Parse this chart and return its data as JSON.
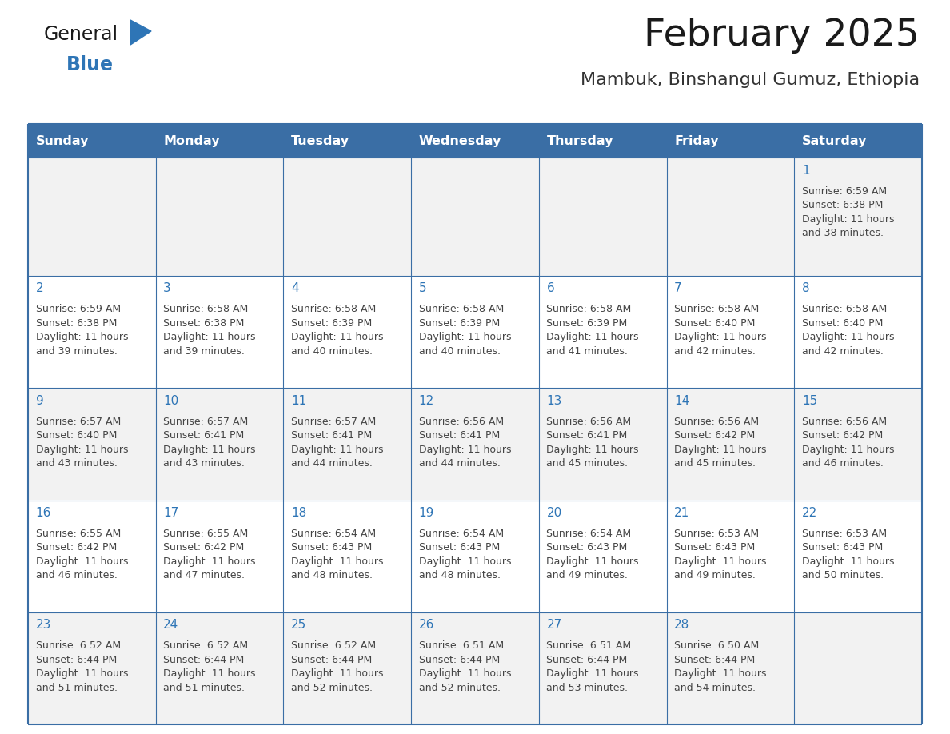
{
  "title": "February 2025",
  "subtitle": "Mambuk, Binshangul Gumuz, Ethiopia",
  "header_bg_color": "#3A6EA5",
  "header_text_color": "#FFFFFF",
  "row_colors": [
    "#F2F2F2",
    "#FFFFFF",
    "#F2F2F2",
    "#FFFFFF",
    "#F2F2F2"
  ],
  "day_headers": [
    "Sunday",
    "Monday",
    "Tuesday",
    "Wednesday",
    "Thursday",
    "Friday",
    "Saturday"
  ],
  "days": [
    {
      "day": 1,
      "col": 6,
      "row": 0,
      "sunrise": "6:59 AM",
      "sunset": "6:38 PM",
      "daylight": "11 hours and 38 minutes."
    },
    {
      "day": 2,
      "col": 0,
      "row": 1,
      "sunrise": "6:59 AM",
      "sunset": "6:38 PM",
      "daylight": "11 hours and 39 minutes."
    },
    {
      "day": 3,
      "col": 1,
      "row": 1,
      "sunrise": "6:58 AM",
      "sunset": "6:38 PM",
      "daylight": "11 hours and 39 minutes."
    },
    {
      "day": 4,
      "col": 2,
      "row": 1,
      "sunrise": "6:58 AM",
      "sunset": "6:39 PM",
      "daylight": "11 hours and 40 minutes."
    },
    {
      "day": 5,
      "col": 3,
      "row": 1,
      "sunrise": "6:58 AM",
      "sunset": "6:39 PM",
      "daylight": "11 hours and 40 minutes."
    },
    {
      "day": 6,
      "col": 4,
      "row": 1,
      "sunrise": "6:58 AM",
      "sunset": "6:39 PM",
      "daylight": "11 hours and 41 minutes."
    },
    {
      "day": 7,
      "col": 5,
      "row": 1,
      "sunrise": "6:58 AM",
      "sunset": "6:40 PM",
      "daylight": "11 hours and 42 minutes."
    },
    {
      "day": 8,
      "col": 6,
      "row": 1,
      "sunrise": "6:58 AM",
      "sunset": "6:40 PM",
      "daylight": "11 hours and 42 minutes."
    },
    {
      "day": 9,
      "col": 0,
      "row": 2,
      "sunrise": "6:57 AM",
      "sunset": "6:40 PM",
      "daylight": "11 hours and 43 minutes."
    },
    {
      "day": 10,
      "col": 1,
      "row": 2,
      "sunrise": "6:57 AM",
      "sunset": "6:41 PM",
      "daylight": "11 hours and 43 minutes."
    },
    {
      "day": 11,
      "col": 2,
      "row": 2,
      "sunrise": "6:57 AM",
      "sunset": "6:41 PM",
      "daylight": "11 hours and 44 minutes."
    },
    {
      "day": 12,
      "col": 3,
      "row": 2,
      "sunrise": "6:56 AM",
      "sunset": "6:41 PM",
      "daylight": "11 hours and 44 minutes."
    },
    {
      "day": 13,
      "col": 4,
      "row": 2,
      "sunrise": "6:56 AM",
      "sunset": "6:41 PM",
      "daylight": "11 hours and 45 minutes."
    },
    {
      "day": 14,
      "col": 5,
      "row": 2,
      "sunrise": "6:56 AM",
      "sunset": "6:42 PM",
      "daylight": "11 hours and 45 minutes."
    },
    {
      "day": 15,
      "col": 6,
      "row": 2,
      "sunrise": "6:56 AM",
      "sunset": "6:42 PM",
      "daylight": "11 hours and 46 minutes."
    },
    {
      "day": 16,
      "col": 0,
      "row": 3,
      "sunrise": "6:55 AM",
      "sunset": "6:42 PM",
      "daylight": "11 hours and 46 minutes."
    },
    {
      "day": 17,
      "col": 1,
      "row": 3,
      "sunrise": "6:55 AM",
      "sunset": "6:42 PM",
      "daylight": "11 hours and 47 minutes."
    },
    {
      "day": 18,
      "col": 2,
      "row": 3,
      "sunrise": "6:54 AM",
      "sunset": "6:43 PM",
      "daylight": "11 hours and 48 minutes."
    },
    {
      "day": 19,
      "col": 3,
      "row": 3,
      "sunrise": "6:54 AM",
      "sunset": "6:43 PM",
      "daylight": "11 hours and 48 minutes."
    },
    {
      "day": 20,
      "col": 4,
      "row": 3,
      "sunrise": "6:54 AM",
      "sunset": "6:43 PM",
      "daylight": "11 hours and 49 minutes."
    },
    {
      "day": 21,
      "col": 5,
      "row": 3,
      "sunrise": "6:53 AM",
      "sunset": "6:43 PM",
      "daylight": "11 hours and 49 minutes."
    },
    {
      "day": 22,
      "col": 6,
      "row": 3,
      "sunrise": "6:53 AM",
      "sunset": "6:43 PM",
      "daylight": "11 hours and 50 minutes."
    },
    {
      "day": 23,
      "col": 0,
      "row": 4,
      "sunrise": "6:52 AM",
      "sunset": "6:44 PM",
      "daylight": "11 hours and 51 minutes."
    },
    {
      "day": 24,
      "col": 1,
      "row": 4,
      "sunrise": "6:52 AM",
      "sunset": "6:44 PM",
      "daylight": "11 hours and 51 minutes."
    },
    {
      "day": 25,
      "col": 2,
      "row": 4,
      "sunrise": "6:52 AM",
      "sunset": "6:44 PM",
      "daylight": "11 hours and 52 minutes."
    },
    {
      "day": 26,
      "col": 3,
      "row": 4,
      "sunrise": "6:51 AM",
      "sunset": "6:44 PM",
      "daylight": "11 hours and 52 minutes."
    },
    {
      "day": 27,
      "col": 4,
      "row": 4,
      "sunrise": "6:51 AM",
      "sunset": "6:44 PM",
      "daylight": "11 hours and 53 minutes."
    },
    {
      "day": 28,
      "col": 5,
      "row": 4,
      "sunrise": "6:50 AM",
      "sunset": "6:44 PM",
      "daylight": "11 hours and 54 minutes."
    }
  ],
  "num_rows": 5,
  "num_cols": 7,
  "logo_general_color": "#1a1a1a",
  "logo_blue_color": "#2E75B6",
  "logo_triangle_color": "#2E75B6",
  "title_color": "#1a1a1a",
  "subtitle_color": "#333333",
  "day_number_color": "#2E75B6",
  "info_text_color": "#444444",
  "border_line_color": "#3A6EA5"
}
